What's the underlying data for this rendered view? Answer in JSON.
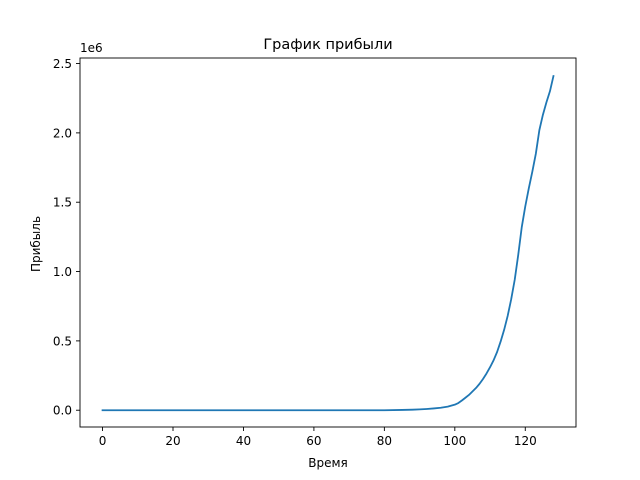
{
  "chart_data": {
    "type": "line",
    "title": "График прибыли",
    "xlabel": "Время",
    "ylabel": "Прибыль",
    "offset_text": "1e6",
    "xlim": [
      -6.4,
      134.4
    ],
    "ylim": [
      -121000,
      2540000
    ],
    "x_ticks": [
      0,
      20,
      40,
      60,
      80,
      100,
      120
    ],
    "y_ticks": [
      0,
      500000,
      1000000,
      1500000,
      2000000,
      2500000
    ],
    "x_tick_labels": [
      "0",
      "20",
      "40",
      "60",
      "80",
      "100",
      "120"
    ],
    "y_tick_labels": [
      "0.0",
      "0.5",
      "1.0",
      "1.5",
      "2.0",
      "2.5"
    ],
    "grid": false,
    "line_color": "#1f77b4",
    "series": [
      {
        "x": [
          0,
          10,
          20,
          30,
          40,
          50,
          60,
          70,
          80,
          85,
          88,
          90,
          92,
          94,
          96,
          98,
          100,
          101,
          102,
          103,
          104,
          105,
          106,
          107,
          108,
          109,
          110,
          111,
          112,
          113,
          114,
          115,
          116,
          117,
          118,
          119,
          120,
          121,
          122,
          123,
          124,
          125,
          126,
          127,
          128
        ],
        "y": [
          0,
          0,
          0,
          0,
          0,
          0,
          0,
          0,
          0,
          2000,
          4000,
          6000,
          9000,
          13000,
          18000,
          26000,
          40000,
          52000,
          70000,
          90000,
          110000,
          135000,
          160000,
          190000,
          225000,
          265000,
          310000,
          360000,
          420000,
          495000,
          580000,
          680000,
          800000,
          940000,
          1120000,
          1320000,
          1470000,
          1600000,
          1720000,
          1850000,
          2020000,
          2130000,
          2220000,
          2300000,
          2410000
        ]
      }
    ]
  }
}
